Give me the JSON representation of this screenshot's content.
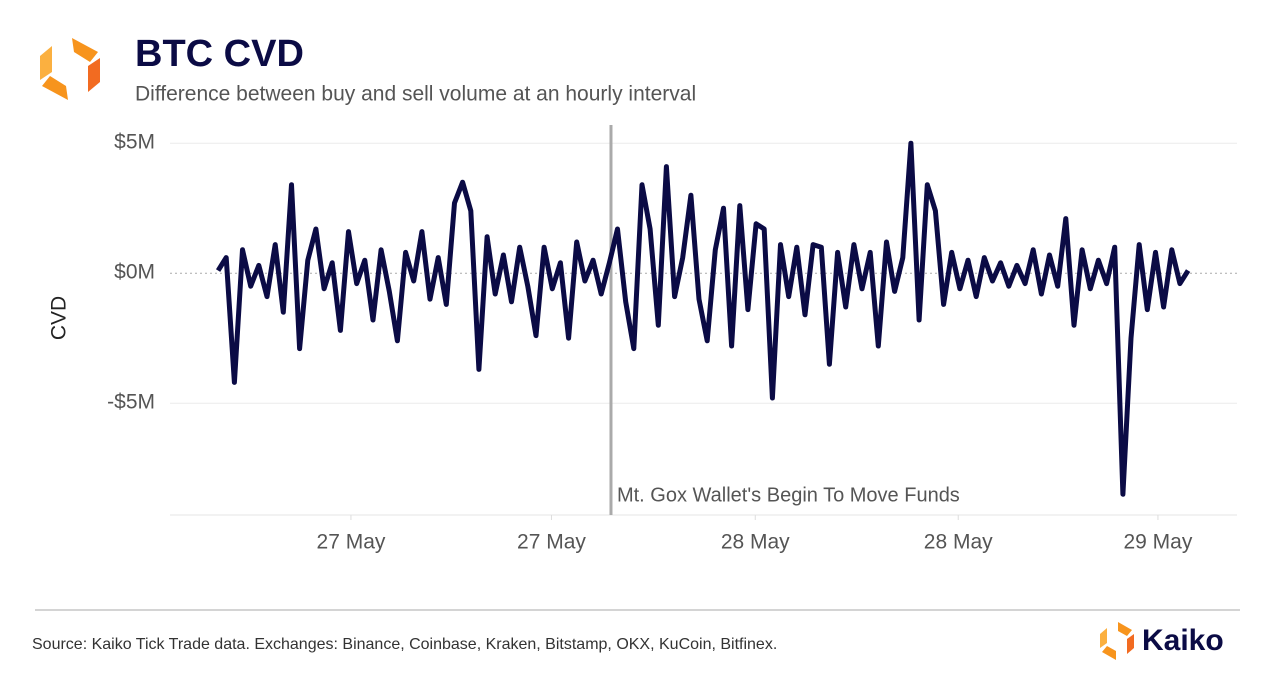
{
  "chart_data": {
    "type": "line",
    "title": "BTC CVD",
    "subtitle": "Difference between buy and sell volume at an hourly interval",
    "y_label": "CVD",
    "source": "Source: Kaiko Tick Trade data. Exchanges: Binance, Coinbase, Kraken, Bitstamp, OKX, KuCoin, Bitfinex.",
    "brand": "Kaiko",
    "annotation": {
      "x": 48.2,
      "text": "Mt. Gox Wallet's Begin To Move Funds"
    },
    "color": "#0b0b45",
    "grid": true,
    "xlim": [
      -5.9,
      125
    ],
    "xticks": [
      {
        "value": 16.3,
        "label": "27 May"
      },
      {
        "value": 40.9,
        "label": "27 May"
      },
      {
        "value": 65.9,
        "label": "28 May"
      },
      {
        "value": 90.8,
        "label": "28 May"
      },
      {
        "value": 115.3,
        "label": "29 May"
      }
    ],
    "ylim": [
      -9.3,
      5.7
    ],
    "yticks": [
      {
        "value": -5,
        "label": "-$5M"
      },
      {
        "value": 0,
        "label": "$0M"
      },
      {
        "value": 5,
        "label": "$5M"
      }
    ],
    "values": [
      0.1,
      0.6,
      -4.2,
      0.9,
      -0.5,
      0.3,
      -0.9,
      1.1,
      -1.5,
      3.4,
      -2.9,
      0.5,
      1.7,
      -0.6,
      0.4,
      -2.2,
      1.6,
      -0.4,
      0.5,
      -1.8,
      0.9,
      -0.7,
      -2.6,
      0.8,
      -0.3,
      1.6,
      -1.0,
      0.6,
      -1.2,
      2.7,
      3.5,
      2.4,
      -3.7,
      1.4,
      -0.8,
      0.7,
      -1.1,
      1.0,
      -0.5,
      -2.4,
      1.0,
      -0.6,
      0.4,
      -2.5,
      1.2,
      -0.3,
      0.5,
      -0.8,
      0.4,
      1.7,
      -1.1,
      -2.9,
      3.4,
      1.7,
      -2.0,
      4.1,
      -0.9,
      0.6,
      3.0,
      -1.0,
      -2.6,
      0.9,
      2.5,
      -2.8,
      2.6,
      -1.4,
      1.9,
      1.7,
      -4.8,
      1.1,
      -0.9,
      1.0,
      -1.6,
      1.1,
      1.0,
      -3.5,
      0.8,
      -1.3,
      1.1,
      -0.6,
      0.8,
      -2.8,
      1.2,
      -0.7,
      0.6,
      5.0,
      -1.8,
      3.4,
      2.4,
      -1.2,
      0.8,
      -0.6,
      0.5,
      -0.9,
      0.6,
      -0.3,
      0.4,
      -0.5,
      0.3,
      -0.4,
      0.9,
      -0.8,
      0.7,
      -0.5,
      2.1,
      -2.0,
      0.9,
      -0.6,
      0.5,
      -0.4,
      1.0,
      -8.5,
      -2.5,
      1.1,
      -1.4,
      0.8,
      -1.3,
      0.9,
      -0.4,
      0.1
    ]
  }
}
